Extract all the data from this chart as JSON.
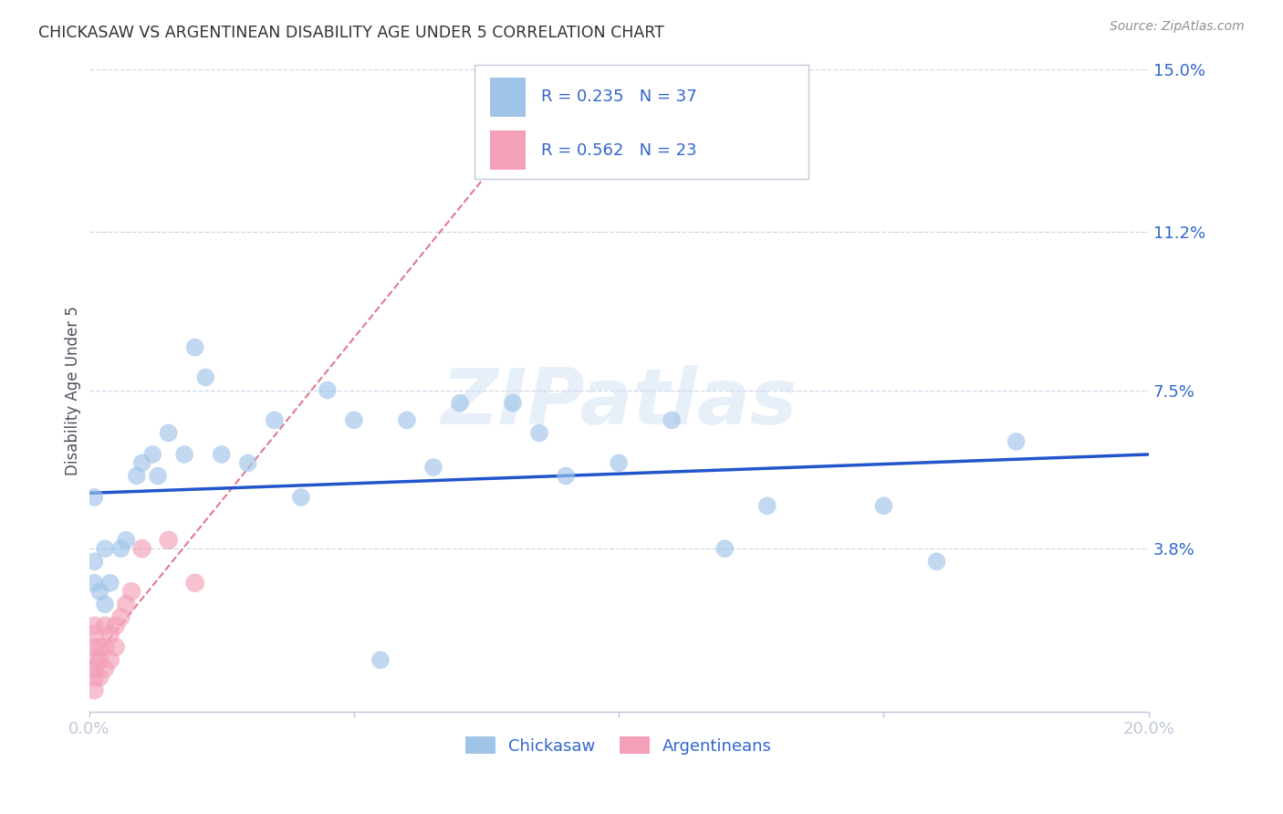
{
  "title": "CHICKASAW VS ARGENTINEAN DISABILITY AGE UNDER 5 CORRELATION CHART",
  "source": "Source: ZipAtlas.com",
  "ylabel": "Disability Age Under 5",
  "xlim": [
    0.0,
    0.2
  ],
  "ylim": [
    0.0,
    0.15
  ],
  "xtick_positions": [
    0.0,
    0.05,
    0.1,
    0.15,
    0.2
  ],
  "xtick_labels": [
    "0.0%",
    "",
    "",
    "",
    "20.0%"
  ],
  "ytick_positions_right": [
    0.15,
    0.112,
    0.075,
    0.038,
    0.0
  ],
  "ytick_labels_right": [
    "15.0%",
    "11.2%",
    "7.5%",
    "3.8%",
    ""
  ],
  "watermark_text": "ZIPatlas",
  "chickasaw_color": "#a0c4e8",
  "argentinean_color": "#f4a0b8",
  "chickasaw_line_color": "#2255cc",
  "argentinean_line_color": "#d84060",
  "chickasaw_points": [
    [
      0.001,
      0.035
    ],
    [
      0.002,
      0.028
    ],
    [
      0.003,
      0.025
    ],
    [
      0.004,
      0.03
    ],
    [
      0.003,
      0.038
    ],
    [
      0.006,
      0.038
    ],
    [
      0.007,
      0.04
    ],
    [
      0.009,
      0.055
    ],
    [
      0.01,
      0.058
    ],
    [
      0.012,
      0.06
    ],
    [
      0.013,
      0.055
    ],
    [
      0.015,
      0.065
    ],
    [
      0.018,
      0.06
    ],
    [
      0.02,
      0.085
    ],
    [
      0.022,
      0.078
    ],
    [
      0.025,
      0.06
    ],
    [
      0.035,
      0.068
    ],
    [
      0.04,
      0.05
    ],
    [
      0.045,
      0.075
    ],
    [
      0.05,
      0.068
    ],
    [
      0.06,
      0.068
    ],
    [
      0.065,
      0.057
    ],
    [
      0.07,
      0.072
    ],
    [
      0.08,
      0.072
    ],
    [
      0.09,
      0.055
    ],
    [
      0.1,
      0.058
    ],
    [
      0.11,
      0.068
    ],
    [
      0.12,
      0.038
    ],
    [
      0.15,
      0.048
    ],
    [
      0.16,
      0.035
    ],
    [
      0.175,
      0.063
    ],
    [
      0.055,
      0.012
    ],
    [
      0.001,
      0.05
    ],
    [
      0.001,
      0.03
    ],
    [
      0.03,
      0.058
    ],
    [
      0.085,
      0.065
    ],
    [
      0.128,
      0.048
    ]
  ],
  "argentinean_points": [
    [
      0.001,
      0.005
    ],
    [
      0.001,
      0.008
    ],
    [
      0.001,
      0.01
    ],
    [
      0.001,
      0.012
    ],
    [
      0.001,
      0.015
    ],
    [
      0.001,
      0.018
    ],
    [
      0.001,
      0.02
    ],
    [
      0.002,
      0.008
    ],
    [
      0.002,
      0.012
    ],
    [
      0.002,
      0.015
    ],
    [
      0.003,
      0.01
    ],
    [
      0.003,
      0.015
    ],
    [
      0.003,
      0.02
    ],
    [
      0.004,
      0.012
    ],
    [
      0.004,
      0.018
    ],
    [
      0.005,
      0.015
    ],
    [
      0.005,
      0.02
    ],
    [
      0.006,
      0.022
    ],
    [
      0.007,
      0.025
    ],
    [
      0.008,
      0.028
    ],
    [
      0.01,
      0.038
    ],
    [
      0.015,
      0.04
    ],
    [
      0.02,
      0.03
    ]
  ],
  "grid_color": "#ccd8e8",
  "bg_color": "#ffffff",
  "text_color_blue": "#3366cc",
  "text_color_dark": "#333333",
  "axis_color": "#c0c8d8",
  "legend_box_color": "#e8eef8",
  "legend_r1": "R = 0.235",
  "legend_n1": "N = 37",
  "legend_r2": "R = 0.562",
  "legend_n2": "N = 23",
  "bottom_legend_labels": [
    "Chickasaw",
    "Argentineans"
  ]
}
